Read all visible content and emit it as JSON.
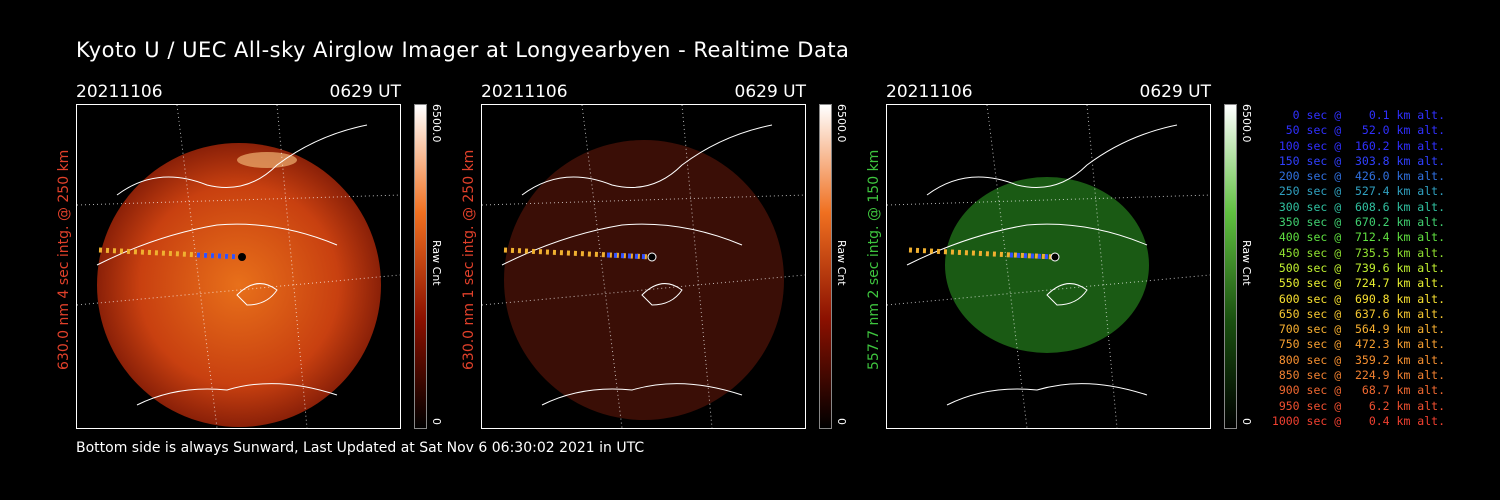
{
  "title": "Kyoto U / UEC All-sky Airglow Imager at Longyearbyen - Realtime Data",
  "footer": "Bottom side is always Sunward, Last Updated at Sat Nov  6 06:30:02 2021 in UTC",
  "panels": [
    {
      "date": "20211106",
      "time": "0629 UT",
      "ylabel": "630.0 nm 4 sec intg. @ 250 km",
      "ylabel_color": "#e0402a",
      "cb_max": "6500.0",
      "cb_min": "0",
      "cb_unit": "Raw Cnt",
      "tint": "red-bright"
    },
    {
      "date": "20211106",
      "time": "0629 UT",
      "ylabel": "630.0 nm 1 sec intg. @ 250 km",
      "ylabel_color": "#e0402a",
      "cb_max": "6500.0",
      "cb_min": "0",
      "cb_unit": "Raw Cnt",
      "tint": "red-dim"
    },
    {
      "date": "20211106",
      "time": "0629 UT",
      "ylabel": "557.7 nm 2 sec intg. @ 150 km",
      "ylabel_color": "#3ec43e",
      "cb_max": "6500.0",
      "cb_min": "0",
      "cb_unit": "Raw Cnt",
      "tint": "green"
    }
  ],
  "legend": [
    {
      "text": "   0 sec @    0.1 km alt.",
      "color": "#3030ff"
    },
    {
      "text": "  50 sec @   52.0 km alt.",
      "color": "#3030ff"
    },
    {
      "text": " 100 sec @  160.2 km alt.",
      "color": "#3030ff"
    },
    {
      "text": " 150 sec @  303.8 km alt.",
      "color": "#3040ff"
    },
    {
      "text": " 200 sec @  426.0 km alt.",
      "color": "#3070e0"
    },
    {
      "text": " 250 sec @  527.4 km alt.",
      "color": "#30a0c0"
    },
    {
      "text": " 300 sec @  608.6 km alt.",
      "color": "#30c0a0"
    },
    {
      "text": " 350 sec @  670.2 km alt.",
      "color": "#40d070"
    },
    {
      "text": " 400 sec @  712.4 km alt.",
      "color": "#60e040"
    },
    {
      "text": " 450 sec @  735.5 km alt.",
      "color": "#90e030"
    },
    {
      "text": " 500 sec @  739.6 km alt.",
      "color": "#c0f030"
    },
    {
      "text": " 550 sec @  724.7 km alt.",
      "color": "#e8f030"
    },
    {
      "text": " 600 sec @  690.8 km alt.",
      "color": "#f8e030"
    },
    {
      "text": " 650 sec @  637.6 km alt.",
      "color": "#f8c830"
    },
    {
      "text": " 700 sec @  564.9 km alt.",
      "color": "#f8b030"
    },
    {
      "text": " 750 sec @  472.3 km alt.",
      "color": "#f8a030"
    },
    {
      "text": " 800 sec @  359.2 km alt.",
      "color": "#f89030"
    },
    {
      "text": " 850 sec @  224.9 km alt.",
      "color": "#f08030"
    },
    {
      "text": " 900 sec @   68.7 km alt.",
      "color": "#f06830"
    },
    {
      "text": " 950 sec @    6.2 km alt.",
      "color": "#f05030"
    },
    {
      "text": "1000 sec @    0.4 km alt.",
      "color": "#f04030"
    }
  ]
}
